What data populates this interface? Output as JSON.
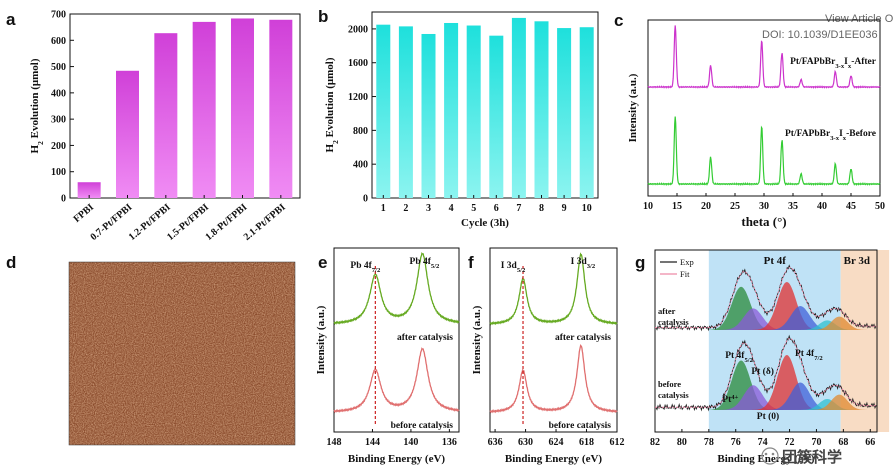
{
  "watermark": {
    "line1": "View Article O",
    "line2": "DOI: 10.1039/D1EE036",
    "brand": "团簇科学"
  },
  "panels": {
    "a": "a",
    "b": "b",
    "c": "c",
    "d": "d",
    "e": "e",
    "f": "f",
    "g": "g"
  },
  "colors": {
    "bar_a_top": "#d040d8",
    "bar_a_bottom": "#f08cf4",
    "bar_b_top": "#1ee0dc",
    "bar_b_bottom": "#8cf4f0",
    "xrd_after": "#cc33cc",
    "xrd_before": "#33cc33",
    "xps_after": "#66aa22",
    "xps_before": "#e07070",
    "g_pt_band": "#bfe2f6",
    "g_br_band": "#f8dcc4"
  },
  "chart_data": [
    {
      "panel": "a",
      "type": "bar",
      "ylabel": "H2 Evolution (μmol)",
      "ylim": [
        0,
        700
      ],
      "yticks": [
        0,
        100,
        200,
        300,
        400,
        500,
        600,
        700
      ],
      "categories": [
        "FPBI",
        "0.7-Pt/FPBI",
        "1.2-Pt/FPBI",
        "1.5-Pt/FPBI",
        "1.8-Pt/FPBI",
        "2.1-Pt/FPBI"
      ],
      "values": [
        60,
        484,
        627,
        670,
        683,
        678
      ]
    },
    {
      "panel": "b",
      "type": "bar",
      "xlabel": "Cycle (3h)",
      "ylabel": "H2 Evolution (μmol)",
      "ylim": [
        0,
        2200
      ],
      "yticks": [
        0,
        400,
        800,
        1200,
        1600,
        2000
      ],
      "categories": [
        "1",
        "2",
        "3",
        "4",
        "5",
        "6",
        "7",
        "8",
        "9",
        "10"
      ],
      "values": [
        2050,
        2030,
        1940,
        2070,
        2040,
        1920,
        2130,
        2090,
        2010,
        2020
      ]
    },
    {
      "panel": "c",
      "type": "line",
      "xlabel": "theta (°)",
      "ylabel": "Intensity (a.u.)",
      "xlim": [
        10,
        50
      ],
      "xticks": [
        10,
        15,
        20,
        25,
        30,
        35,
        40,
        45,
        50
      ],
      "series": [
        {
          "name": "Pt/FAPbBr3-xIx-After",
          "peaks": [
            [
              14.7,
              1.0
            ],
            [
              20.8,
              0.35
            ],
            [
              29.6,
              0.75
            ],
            [
              33.1,
              0.55
            ],
            [
              36.4,
              0.12
            ],
            [
              42.3,
              0.25
            ],
            [
              45.0,
              0.18
            ]
          ]
        },
        {
          "name": "Pt/FAPbBr3-xIx-Before",
          "peaks": [
            [
              14.7,
              1.0
            ],
            [
              20.8,
              0.4
            ],
            [
              29.6,
              0.85
            ],
            [
              33.1,
              0.65
            ],
            [
              36.4,
              0.15
            ],
            [
              42.3,
              0.3
            ],
            [
              45.0,
              0.22
            ]
          ]
        }
      ],
      "series_labels": {
        "after_main": "Pt/FAPbBr",
        "after_sub": "3-x",
        "after_mid": "I",
        "after_sub2": "x",
        "after_tail": "-After",
        "before_main": "Pt/FAPbBr",
        "before_sub": "3-x",
        "before_mid": "I",
        "before_sub2": "x",
        "before_tail": "-Before"
      }
    },
    {
      "panel": "e",
      "type": "line",
      "xlabel": "Binding Energy (eV)",
      "ylabel": "Intensity (a.u.)",
      "xlim": [
        148,
        135
      ],
      "xticks": [
        148,
        144,
        140,
        136
      ],
      "series": [
        {
          "name": "after catalysis",
          "peaks": [
            [
              143.7,
              0.7
            ],
            [
              138.8,
              1.0
            ]
          ]
        },
        {
          "name": "before catalysis",
          "peaks": [
            [
              143.7,
              0.6
            ],
            [
              138.8,
              0.9
            ]
          ]
        }
      ],
      "annotations": {
        "pk1": "Pb 4f",
        "pk1_sub": "7/2",
        "pk2": "Pb 4f",
        "pk2_sub": "5/2",
        "after": "after catalysis",
        "before": "before catalysis"
      }
    },
    {
      "panel": "f",
      "type": "line",
      "xlabel": "Binding Energy (eV)",
      "ylabel": "Intensity (a.u.)",
      "xlim": [
        637,
        612
      ],
      "xticks": [
        636,
        630,
        624,
        618,
        612
      ],
      "series": [
        {
          "name": "after catalysis",
          "peaks": [
            [
              630.5,
              0.65
            ],
            [
              619.1,
              1.0
            ]
          ]
        },
        {
          "name": "before catalysis",
          "peaks": [
            [
              630.5,
              0.6
            ],
            [
              619.1,
              0.95
            ]
          ]
        }
      ],
      "annotations": {
        "pk1": "I 3d",
        "pk1_sub": "5/2",
        "pk2": "I 3d",
        "pk2_sub": "3/2",
        "after": "after catalysis",
        "before": "before catalysis"
      }
    },
    {
      "panel": "g",
      "type": "line",
      "xlabel": "Binding Energy (eV)",
      "xlim": [
        82,
        65.5
      ],
      "xticks": [
        82,
        80,
        78,
        76,
        74,
        72,
        70,
        68,
        66
      ],
      "legend": [
        "Exp",
        "Fit"
      ],
      "regions": [
        "Pt 4f",
        "Br 3d"
      ],
      "annotations": {
        "after_l1": "after",
        "after_l2": "catalysis",
        "before_l1": "before",
        "before_l2": "catalysis",
        "pt52": "Pt 4f",
        "pt52_sub": "5/2",
        "pt72": "Pt 4f",
        "pt72_sub": "7/2",
        "ptdelta": "Pt (δ)",
        "pt4plus": "Pt",
        "pt4plus_sup": "4+",
        "pt0": "Pt (0)"
      }
    }
  ]
}
